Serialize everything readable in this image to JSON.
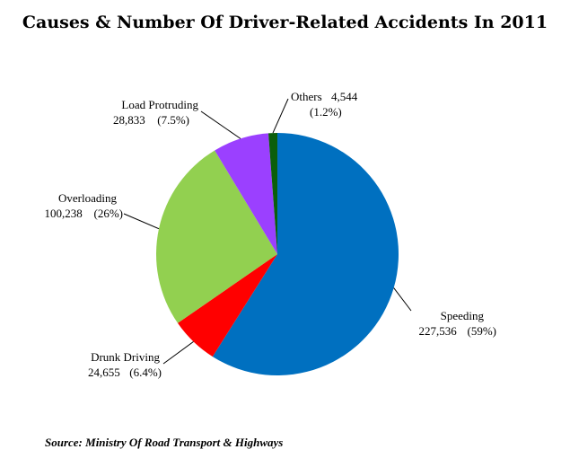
{
  "chart_data": {
    "type": "pie",
    "title": "Causes & Number Of Driver-Related Accidents In 2011",
    "source": "Source: Ministry Of Road Transport & Highways",
    "slices": [
      {
        "name": "Speeding",
        "value": 227536,
        "value_label": "227,536",
        "percent_label": "(59%)",
        "color": "#0070c0"
      },
      {
        "name": "Drunk Driving",
        "value": 24655,
        "value_label": "24,655",
        "percent_label": "(6.4%)",
        "color": "#ff0000"
      },
      {
        "name": "Overloading",
        "value": 100238,
        "value_label": "100,238",
        "percent_label": "(26%)",
        "color": "#92d050"
      },
      {
        "name": "Load Protruding",
        "value": 28833,
        "value_label": "28,833",
        "percent_label": "(7.5%)",
        "color": "#9b40ff"
      },
      {
        "name": "Others",
        "value": 4544,
        "value_label": "4,544",
        "percent_label": "(1.2%)",
        "color": "#0b5e0b"
      }
    ]
  }
}
